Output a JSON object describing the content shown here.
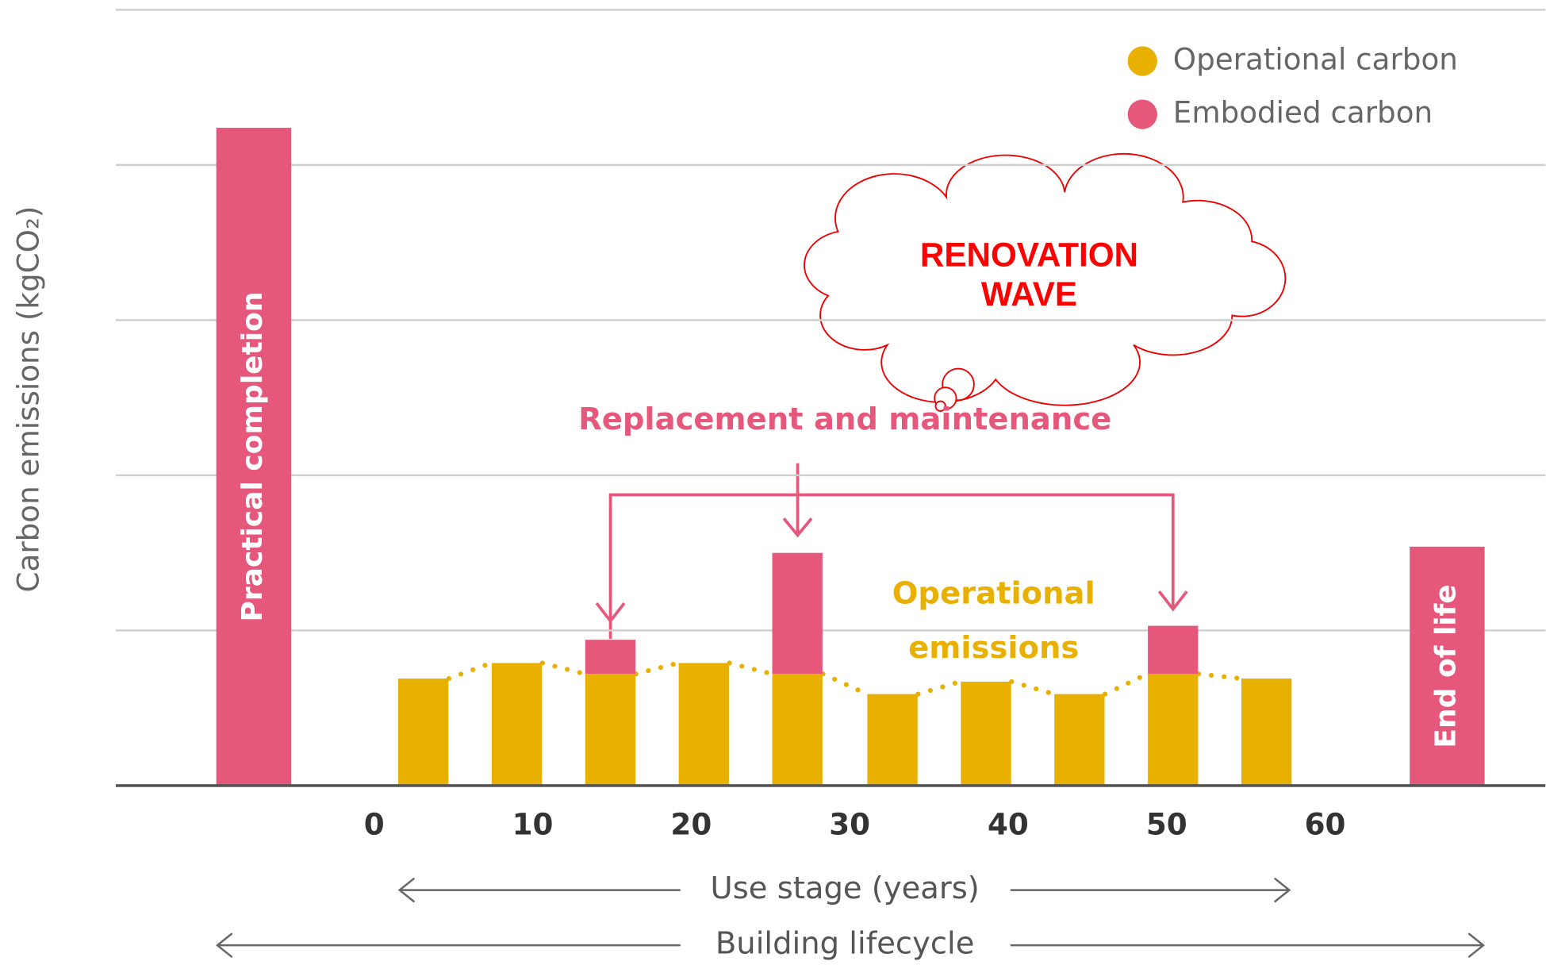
{
  "chart_data": {
    "type": "bar",
    "y_label": "Carbon emissions (kgCO₂)",
    "x": [
      -7.6,
      3.1,
      9.0,
      14.9,
      20.8,
      26.7,
      32.7,
      38.6,
      44.5,
      50.4,
      56.3,
      67.7
    ],
    "series": [
      {
        "name": "Operational carbon",
        "color": "#e8b000",
        "values": [
          null,
          0.69,
          0.79,
          0.72,
          0.79,
          0.72,
          0.59,
          0.67,
          0.59,
          0.72,
          0.69,
          null
        ]
      },
      {
        "name": "Embodied carbon",
        "color": "#e5587b",
        "values": [
          4.24,
          null,
          null,
          0.22,
          null,
          0.78,
          null,
          null,
          null,
          0.31,
          null,
          1.54
        ]
      }
    ],
    "bar_labels": [
      "Practical completion",
      null,
      null,
      null,
      null,
      null,
      null,
      null,
      null,
      null,
      null,
      "End of life"
    ],
    "xlim": [
      -16.3,
      73.9
    ],
    "xticks": [
      0,
      10,
      20,
      30,
      40,
      50,
      60
    ],
    "ylim": [
      0,
      5
    ],
    "yticks": [
      0,
      1,
      2,
      3,
      4,
      5
    ],
    "grid": true,
    "legend": "top-right",
    "annotations": {
      "replacement": "Replacement and maintenance",
      "operational": [
        "Operational",
        "emissions"
      ],
      "renovation": [
        "RENOVATION",
        "WAVE"
      ],
      "use_stage": "Use stage (years)",
      "lifecycle": "Building lifecycle"
    }
  }
}
